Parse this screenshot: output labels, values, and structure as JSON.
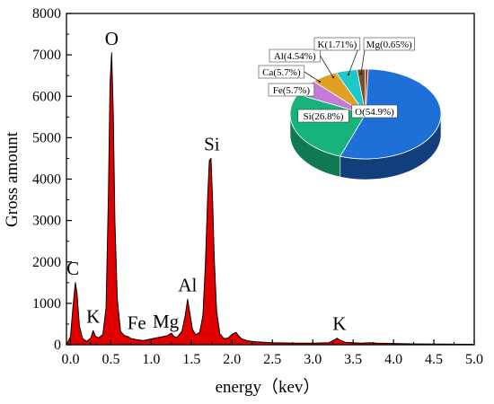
{
  "chart_data": [
    {
      "type": "area",
      "title": "",
      "xlabel": "energy（kev）",
      "ylabel": "Gross amount",
      "xlim": [
        -0.05,
        5.0
      ],
      "ylim": [
        0,
        8000
      ],
      "x_ticks": [
        "0.0",
        "0.5",
        "1.0",
        "1.5",
        "2.0",
        "2.5",
        "3.0",
        "3.5",
        "4.0",
        "4.5",
        "5.0"
      ],
      "y_ticks": [
        "0",
        "1000",
        "2000",
        "3000",
        "4000",
        "5000",
        "6000",
        "7000",
        "8000"
      ],
      "fill_color": "#e00000",
      "series": [
        {
          "x": [
            -0.05,
            0.0,
            0.03,
            0.06,
            0.08,
            0.11,
            0.15,
            0.2,
            0.25,
            0.28,
            0.31,
            0.35,
            0.4,
            0.44,
            0.47,
            0.49,
            0.51,
            0.53,
            0.55,
            0.58,
            0.62,
            0.67,
            0.71,
            0.75,
            0.8,
            0.9,
            1.0,
            1.1,
            1.2,
            1.25,
            1.28,
            1.32,
            1.38,
            1.42,
            1.45,
            1.48,
            1.51,
            1.55,
            1.6,
            1.64,
            1.67,
            1.7,
            1.72,
            1.74,
            1.76,
            1.78,
            1.81,
            1.85,
            1.9,
            1.95,
            2.0,
            2.05,
            2.08,
            2.12,
            2.2,
            2.3,
            2.5,
            2.8,
            3.0,
            3.2,
            3.27,
            3.3,
            3.33,
            3.4,
            3.6,
            3.7,
            3.8,
            4.0,
            4.3,
            4.6,
            5.0
          ],
          "values": [
            0,
            200,
            900,
            1500,
            1250,
            450,
            150,
            80,
            160,
            340,
            200,
            170,
            250,
            900,
            3600,
            6300,
            7050,
            5600,
            3000,
            1100,
            320,
            220,
            200,
            150,
            130,
            100,
            140,
            180,
            220,
            280,
            200,
            180,
            330,
            700,
            1100,
            750,
            380,
            240,
            300,
            700,
            1900,
            3600,
            4450,
            4500,
            3500,
            2100,
            800,
            260,
            150,
            160,
            250,
            300,
            220,
            140,
            90,
            70,
            50,
            40,
            40,
            50,
            120,
            160,
            120,
            60,
            40,
            50,
            40,
            30,
            20,
            15,
            10
          ]
        }
      ],
      "annotations": [
        {
          "text": "C",
          "x": 0.03,
          "y": 1500
        },
        {
          "text": "K",
          "x": 0.28,
          "y": 340
        },
        {
          "text": "O",
          "x": 0.51,
          "y": 7050
        },
        {
          "text": "Fe",
          "x": 0.82,
          "y": 180
        },
        {
          "text": "Mg",
          "x": 1.18,
          "y": 220
        },
        {
          "text": "Al",
          "x": 1.45,
          "y": 1100
        },
        {
          "text": "Si",
          "x": 1.75,
          "y": 4500
        },
        {
          "text": "K",
          "x": 3.33,
          "y": 160
        }
      ]
    },
    {
      "type": "pie",
      "title": "",
      "labels": [
        "O(54.9%)",
        "Si(26.8%)",
        "Fe(5.7%)",
        "Ca(5.7%)",
        "Al(4.54%)",
        "K(1.71%)",
        "Mg(0.65%)"
      ],
      "values": [
        54.9,
        26.8,
        5.7,
        5.7,
        4.54,
        1.71,
        0.65
      ],
      "colors": [
        "#1f6fd8",
        "#17b37a",
        "#c57ad8",
        "#e0a022",
        "#1fc8c8",
        "#7b4b2a",
        "#c23a2a"
      ],
      "side_colors": [
        "#123f7c",
        "#0f7a52",
        "#8a4f99",
        "#9c6e15",
        "#138a8a",
        "#4f2f1a",
        "#862318"
      ],
      "three_d": true
    }
  ]
}
